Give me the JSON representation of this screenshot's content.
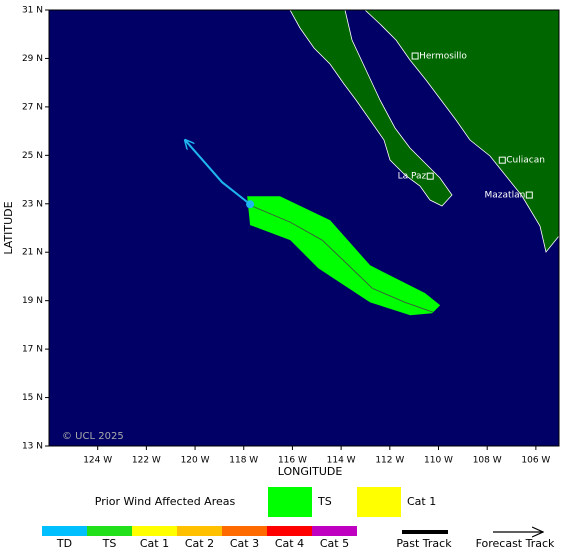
{
  "map": {
    "xlabel": "LONGITUDE",
    "ylabel": "LATITUDE",
    "xlim": [
      -126,
      -105.05
    ],
    "ylim": [
      13,
      31
    ],
    "xticks": [
      {
        "value": -124,
        "label": "124 W"
      },
      {
        "value": -122,
        "label": "122 W"
      },
      {
        "value": -120,
        "label": "120 W"
      },
      {
        "value": -118,
        "label": "118 W"
      },
      {
        "value": -116,
        "label": "116 W"
      },
      {
        "value": -114,
        "label": "114 W"
      },
      {
        "value": -112,
        "label": "112 W"
      },
      {
        "value": -110,
        "label": "110 W"
      },
      {
        "value": -108,
        "label": "108 W"
      },
      {
        "value": -106,
        "label": "106 W"
      }
    ],
    "yticks": [
      {
        "value": 13,
        "label": "13 N"
      },
      {
        "value": 15,
        "label": "15 N"
      },
      {
        "value": 17,
        "label": "17 N"
      },
      {
        "value": 19,
        "label": "19 N"
      },
      {
        "value": 21,
        "label": "21 N"
      },
      {
        "value": 23,
        "label": "23 N"
      },
      {
        "value": 25,
        "label": "25 N"
      },
      {
        "value": 27,
        "label": "27 N"
      },
      {
        "value": 29,
        "label": "29 N"
      },
      {
        "value": 31,
        "label": "31 N"
      }
    ],
    "cities": [
      {
        "name": "Hermosillo",
        "lon": -110.96,
        "lat": 29.1
      },
      {
        "name": "Culiacan",
        "lon": -107.38,
        "lat": 24.8
      },
      {
        "name": "La Paz",
        "lon": -110.34,
        "lat": 24.14
      },
      {
        "name": "Mazatlan",
        "lon": -106.27,
        "lat": 23.36
      }
    ],
    "wind_swath": {
      "color": "#00ff00",
      "lon": [
        -117.86,
        -116.51,
        -114.45,
        -112.81,
        -110.55,
        -109.93,
        -110.26,
        -111.16,
        -112.81,
        -114.94,
        -116.09,
        -117.74
      ],
      "lat": [
        23.31,
        23.31,
        22.32,
        20.46,
        19.31,
        18.81,
        18.48,
        18.4,
        18.93,
        20.34,
        21.5,
        22.12
      ]
    },
    "forecast_track": {
      "lon": [
        -117.74,
        -116.09,
        -114.78,
        -113.83,
        -112.72,
        -111.37,
        -110.22
      ],
      "lat": [
        22.94,
        22.24,
        21.5,
        20.59,
        19.51,
        18.93,
        18.52
      ]
    },
    "past_track": {
      "color": "#1fb6f0",
      "lon": [
        -117.74,
        -118.89,
        -120.41
      ],
      "lat": [
        22.98,
        23.89,
        25.63
      ]
    },
    "credit": "© UCL 2025"
  },
  "legend": {
    "title": "Prior Wind Affected Areas",
    "areas": [
      {
        "label": "TS",
        "color": "#00ff00"
      },
      {
        "label": "Cat 1",
        "color": "#ffff00"
      }
    ],
    "scale": [
      {
        "label": "TD",
        "color": "#00bfff"
      },
      {
        "label": "TS",
        "color": "#22e01a"
      },
      {
        "label": "Cat 1",
        "color": "#ffff00"
      },
      {
        "label": "Cat 2",
        "color": "#ffc000"
      },
      {
        "label": "Cat 3",
        "color": "#ff6a00"
      },
      {
        "label": "Cat 4",
        "color": "#ff0000"
      },
      {
        "label": "Cat 5",
        "color": "#c000c0"
      }
    ],
    "past_track": "Past Track",
    "forecast_track": "Forecast Track"
  }
}
